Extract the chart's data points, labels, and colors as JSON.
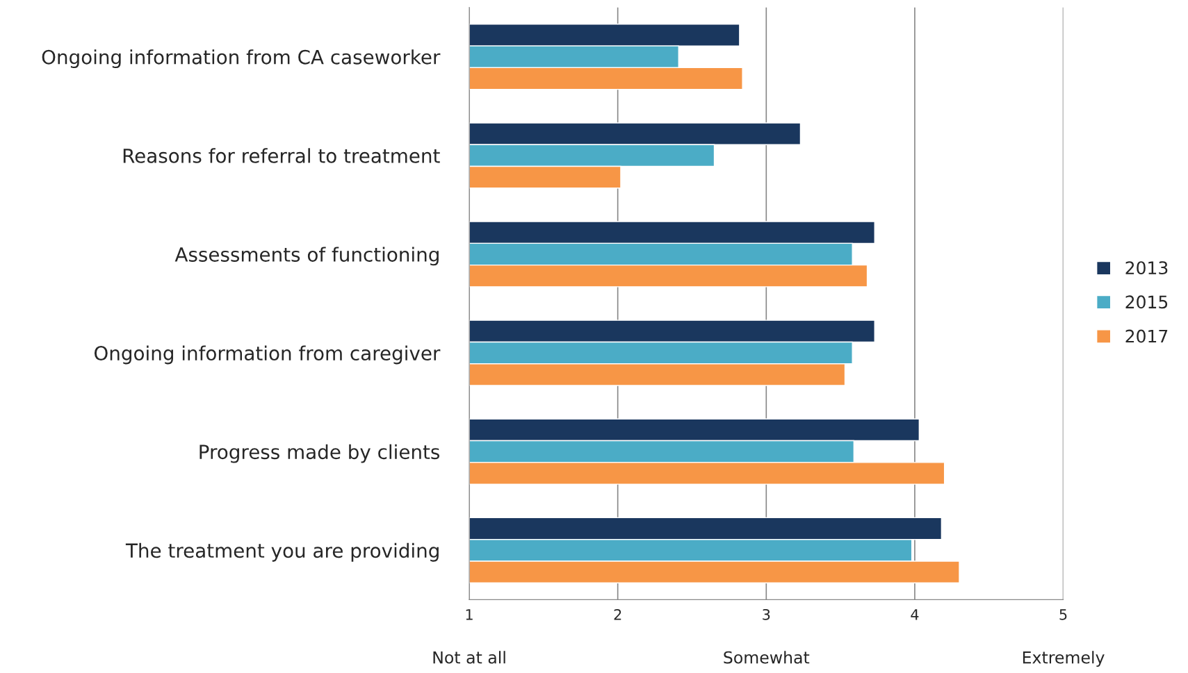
{
  "chart_data": {
    "type": "bar",
    "orientation": "horizontal",
    "categories": [
      "Ongoing information from CA caseworker",
      "Reasons for referral to treatment",
      "Assessments of functioning",
      "Ongoing information from caregiver",
      "Progress made by clients",
      "The treatment you are providing"
    ],
    "series": [
      {
        "name": "2013",
        "color": "#1a375e",
        "values": [
          2.82,
          3.23,
          3.73,
          3.73,
          4.03,
          4.18
        ]
      },
      {
        "name": "2015",
        "color": "#4bacc6",
        "values": [
          2.41,
          2.65,
          3.58,
          3.58,
          3.59,
          3.98
        ]
      },
      {
        "name": "2017",
        "color": "#f79646",
        "values": [
          2.84,
          2.02,
          3.68,
          3.53,
          4.2,
          4.3
        ]
      }
    ],
    "xlim": [
      1,
      5
    ],
    "xticks": [
      1,
      2,
      3,
      4,
      5
    ],
    "annotations": [
      "Not at all",
      "Somewhat",
      "Extremely"
    ],
    "grid": "x",
    "legend": "right"
  }
}
